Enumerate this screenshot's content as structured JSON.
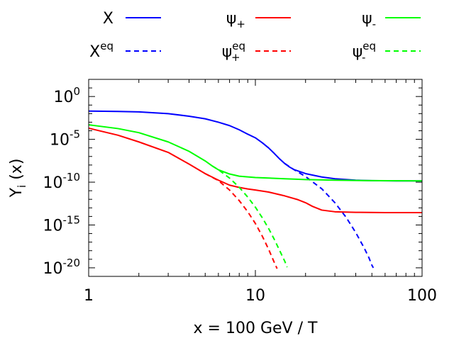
{
  "chart_data": {
    "type": "line",
    "xlabel": "x = 100 GeV / T",
    "ylabel": {
      "base": "Y",
      "sub": "i",
      "rest": " (x)"
    },
    "xscale": "log",
    "yscale": "log",
    "xlim": [
      1,
      100
    ],
    "ylim": [
      1e-21,
      100.0
    ],
    "xticks": [
      {
        "value": 1,
        "label": "1"
      },
      {
        "value": 10,
        "label": "10"
      },
      {
        "value": 100,
        "label": "100"
      }
    ],
    "yticks": [
      {
        "value": 1,
        "base": "10",
        "exp": "0"
      },
      {
        "value": 1e-05,
        "base": "10",
        "exp": "-5"
      },
      {
        "value": 1e-10,
        "base": "10",
        "exp": "-10"
      },
      {
        "value": 1e-15,
        "base": "10",
        "exp": "-15"
      },
      {
        "value": 1e-20,
        "base": "10",
        "exp": "-20"
      }
    ],
    "grid": false,
    "legend_position": "top",
    "series": [
      {
        "key": "X",
        "label": {
          "base": "X",
          "sup": "",
          "sub": ""
        },
        "color": "#0000ff",
        "dash": "solid",
        "points": [
          [
            1,
            0.02
          ],
          [
            1.5,
            0.018
          ],
          [
            2,
            0.016
          ],
          [
            3,
            0.01
          ],
          [
            4,
            0.005
          ],
          [
            5,
            0.0025
          ],
          [
            6,
            0.001
          ],
          [
            7,
            0.0004
          ],
          [
            8,
            0.00013
          ],
          [
            9,
            4e-05
          ],
          [
            10,
            1.5e-05
          ],
          [
            11,
            4e-06
          ],
          [
            12,
            1e-06
          ],
          [
            13,
            2.2e-07
          ],
          [
            14,
            5e-08
          ],
          [
            15,
            1.5e-08
          ],
          [
            16,
            6e-09
          ],
          [
            17,
            3e-09
          ],
          [
            20,
            1e-09
          ],
          [
            25,
            4e-10
          ],
          [
            30,
            2.5e-10
          ],
          [
            40,
            1.7e-10
          ],
          [
            50,
            1.5e-10
          ],
          [
            70,
            1.4e-10
          ],
          [
            100,
            1.4e-10
          ]
        ]
      },
      {
        "key": "Xeq",
        "label": {
          "base": "X",
          "sup": "eq",
          "sub": ""
        },
        "color": "#0000ff",
        "dash": "dashed",
        "points": [
          [
            15,
            1.5e-08
          ],
          [
            17,
            3e-09
          ],
          [
            20,
            4.5e-10
          ],
          [
            25,
            1.7e-11
          ],
          [
            30,
            4e-13
          ],
          [
            35,
            8e-15
          ],
          [
            40,
            1.3e-16
          ],
          [
            45,
            2e-18
          ],
          [
            48,
            1.5e-19
          ],
          [
            50,
            2e-20
          ],
          [
            51,
            1e-20
          ]
        ]
      },
      {
        "key": "psi_plus",
        "label": {
          "base": "ψ",
          "sup": "",
          "sub": "+"
        },
        "color": "#ff0000",
        "dash": "solid",
        "points": [
          [
            1,
            0.0002
          ],
          [
            1.5,
            3e-05
          ],
          [
            2,
            5e-06
          ],
          [
            3,
            3e-07
          ],
          [
            4,
            1.3e-08
          ],
          [
            5,
            1e-09
          ],
          [
            6,
            1.7e-10
          ],
          [
            7,
            4.5e-11
          ],
          [
            8,
            2.4e-11
          ],
          [
            9,
            1.6e-11
          ],
          [
            10,
            1.2e-11
          ],
          [
            12,
            7e-12
          ],
          [
            15,
            2.5e-12
          ],
          [
            18,
            9e-13
          ],
          [
            20,
            4e-13
          ],
          [
            22,
            1.5e-13
          ],
          [
            25,
            5.5e-14
          ],
          [
            30,
            3.5e-14
          ],
          [
            40,
            3e-14
          ],
          [
            60,
            2.8e-14
          ],
          [
            100,
            2.8e-14
          ]
        ]
      },
      {
        "key": "psi_plus_eq",
        "label": {
          "base": "ψ",
          "sup": "eq",
          "sub": "+"
        },
        "color": "#ff0000",
        "dash": "dashed",
        "points": [
          [
            5,
            1e-09
          ],
          [
            6,
            1.5e-10
          ],
          [
            7,
            1.2e-11
          ],
          [
            8,
            7e-13
          ],
          [
            9,
            3.5e-14
          ],
          [
            10,
            1.5e-15
          ],
          [
            11,
            5e-17
          ],
          [
            12,
            1.5e-18
          ],
          [
            13,
            4e-20
          ],
          [
            13.5,
            8e-21
          ]
        ]
      },
      {
        "key": "psi_minus",
        "label": {
          "base": "ψ",
          "sup": "",
          "sub": "-"
        },
        "color": "#00ff00",
        "dash": "solid",
        "points": [
          [
            1,
            0.0005
          ],
          [
            1.5,
            0.00018
          ],
          [
            2,
            6e-05
          ],
          [
            3,
            5e-06
          ],
          [
            4,
            4e-07
          ],
          [
            5,
            3e-08
          ],
          [
            5.5,
            8e-09
          ],
          [
            6,
            2.8e-09
          ],
          [
            7,
            9e-10
          ],
          [
            8,
            5e-10
          ],
          [
            10,
            3.5e-10
          ],
          [
            15,
            2.5e-10
          ],
          [
            20,
            2e-10
          ],
          [
            30,
            1.7e-10
          ],
          [
            50,
            1.5e-10
          ],
          [
            100,
            1.4e-10
          ]
        ]
      },
      {
        "key": "psi_minus_eq",
        "label": {
          "base": "ψ",
          "sup": "eq",
          "sub": "-"
        },
        "color": "#00ff00",
        "dash": "dashed",
        "points": [
          [
            5.5,
            8e-09
          ],
          [
            6,
            2.8e-09
          ],
          [
            7,
            3e-10
          ],
          [
            8,
            2.5e-11
          ],
          [
            9,
            1.8e-12
          ],
          [
            10,
            1.2e-13
          ],
          [
            11,
            7e-15
          ],
          [
            12,
            4e-16
          ],
          [
            13,
            2e-17
          ],
          [
            14,
            1e-18
          ],
          [
            15,
            6e-20
          ],
          [
            15.5,
            1.2e-20
          ]
        ]
      }
    ]
  }
}
